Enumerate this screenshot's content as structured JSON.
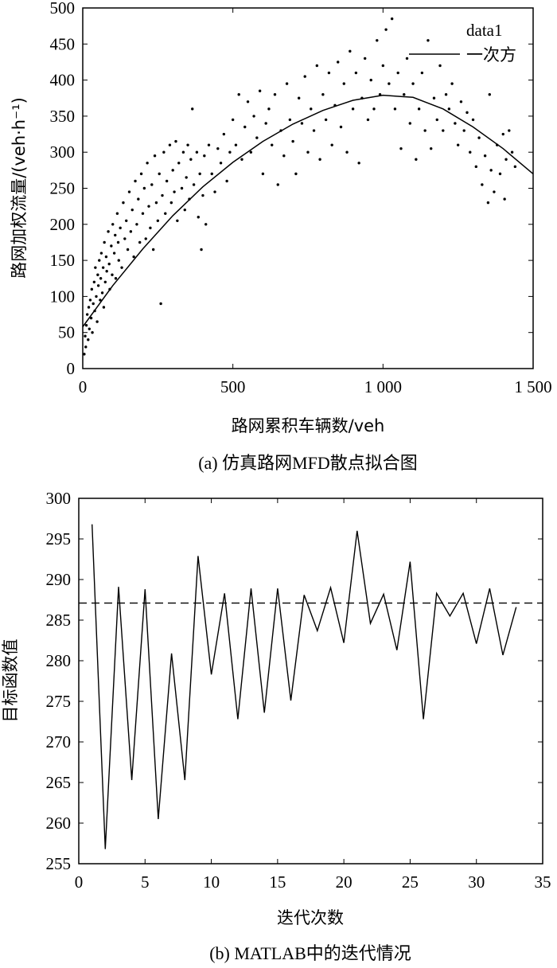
{
  "chart_data": [
    {
      "type": "scatter",
      "caption": "(a) 仿真路网MFD散点拟合图",
      "xlabel": "路网累积车辆数/veh",
      "ylabel": "路网加权流量/(veh·h⁻¹)",
      "xlim": [
        0,
        1500
      ],
      "ylim": [
        0,
        500
      ],
      "xticks": [
        0,
        500,
        1000,
        1500
      ],
      "xtick_labels": [
        "0",
        "500",
        "1 000",
        "1 500"
      ],
      "yticks": [
        0,
        50,
        100,
        150,
        200,
        250,
        300,
        350,
        400,
        450,
        500
      ],
      "ytick_labels": [
        "0",
        "50",
        "100",
        "150",
        "200",
        "250",
        "300",
        "350",
        "400",
        "450",
        "500"
      ],
      "legend": {
        "placement": "top-right",
        "entries": [
          "data1",
          "一次方"
        ]
      },
      "series": [
        {
          "name": "data1",
          "kind": "scatter",
          "points": [
            [
              5,
              20
            ],
            [
              8,
              45
            ],
            [
              10,
              30
            ],
            [
              12,
              60
            ],
            [
              15,
              75
            ],
            [
              18,
              40
            ],
            [
              20,
              85
            ],
            [
              22,
              55
            ],
            [
              25,
              95
            ],
            [
              28,
              70
            ],
            [
              30,
              110
            ],
            [
              32,
              50
            ],
            [
              35,
              90
            ],
            [
              38,
              120
            ],
            [
              40,
              80
            ],
            [
              42,
              140
            ],
            [
              45,
              100
            ],
            [
              48,
              65
            ],
            [
              50,
              130
            ],
            [
              52,
              115
            ],
            [
              55,
              150
            ],
            [
              58,
              95
            ],
            [
              60,
              125
            ],
            [
              62,
              160
            ],
            [
              65,
              105
            ],
            [
              68,
              140
            ],
            [
              70,
              85
            ],
            [
              72,
              175
            ],
            [
              75,
              120
            ],
            [
              78,
              155
            ],
            [
              80,
              135
            ],
            [
              85,
              190
            ],
            [
              88,
              145
            ],
            [
              90,
              110
            ],
            [
              95,
              170
            ],
            [
              98,
              130
            ],
            [
              100,
              200
            ],
            [
              105,
              160
            ],
            [
              108,
              185
            ],
            [
              110,
              125
            ],
            [
              115,
              215
            ],
            [
              118,
              175
            ],
            [
              120,
              150
            ],
            [
              125,
              195
            ],
            [
              130,
              140
            ],
            [
              135,
              230
            ],
            [
              140,
              180
            ],
            [
              145,
              205
            ],
            [
              150,
              165
            ],
            [
              155,
              245
            ],
            [
              160,
              190
            ],
            [
              165,
              220
            ],
            [
              170,
              155
            ],
            [
              175,
              260
            ],
            [
              180,
              200
            ],
            [
              185,
              235
            ],
            [
              190,
              175
            ],
            [
              195,
              270
            ],
            [
              200,
              215
            ],
            [
              205,
              250
            ],
            [
              210,
              180
            ],
            [
              215,
              285
            ],
            [
              220,
              225
            ],
            [
              225,
              195
            ],
            [
              230,
              255
            ],
            [
              235,
              165
            ],
            [
              240,
              295
            ],
            [
              245,
              230
            ],
            [
              250,
              205
            ],
            [
              255,
              270
            ],
            [
              260,
              90
            ],
            [
              265,
              240
            ],
            [
              270,
              300
            ],
            [
              275,
              215
            ],
            [
              280,
              260
            ],
            [
              290,
              310
            ],
            [
              295,
              230
            ],
            [
              300,
              275
            ],
            [
              305,
              245
            ],
            [
              310,
              315
            ],
            [
              315,
              205
            ],
            [
              320,
              285
            ],
            [
              330,
              250
            ],
            [
              335,
              300
            ],
            [
              340,
              220
            ],
            [
              345,
              265
            ],
            [
              350,
              310
            ],
            [
              355,
              235
            ],
            [
              360,
              290
            ],
            [
              365,
              360
            ],
            [
              370,
              255
            ],
            [
              380,
              300
            ],
            [
              385,
              210
            ],
            [
              390,
              270
            ],
            [
              395,
              165
            ],
            [
              400,
              240
            ],
            [
              405,
              295
            ],
            [
              410,
              200
            ],
            [
              420,
              310
            ],
            [
              430,
              270
            ],
            [
              440,
              245
            ],
            [
              450,
              305
            ],
            [
              460,
              285
            ],
            [
              470,
              325
            ],
            [
              480,
              260
            ],
            [
              490,
              300
            ],
            [
              500,
              345
            ],
            [
              510,
              310
            ],
            [
              520,
              380
            ],
            [
              530,
              290
            ],
            [
              540,
              335
            ],
            [
              550,
              370
            ],
            [
              560,
              300
            ],
            [
              570,
              350
            ],
            [
              580,
              320
            ],
            [
              590,
              385
            ],
            [
              600,
              270
            ],
            [
              610,
              340
            ],
            [
              620,
              360
            ],
            [
              630,
              310
            ],
            [
              640,
              380
            ],
            [
              650,
              255
            ],
            [
              660,
              330
            ],
            [
              670,
              295
            ],
            [
              680,
              395
            ],
            [
              690,
              345
            ],
            [
              700,
              315
            ],
            [
              710,
              270
            ],
            [
              720,
              375
            ],
            [
              730,
              340
            ],
            [
              740,
              405
            ],
            [
              750,
              300
            ],
            [
              760,
              360
            ],
            [
              770,
              330
            ],
            [
              780,
              420
            ],
            [
              790,
              290
            ],
            [
              800,
              380
            ],
            [
              810,
              345
            ],
            [
              820,
              410
            ],
            [
              830,
              310
            ],
            [
              840,
              365
            ],
            [
              850,
              425
            ],
            [
              860,
              335
            ],
            [
              870,
              395
            ],
            [
              880,
              300
            ],
            [
              890,
              440
            ],
            [
              900,
              360
            ],
            [
              910,
              410
            ],
            [
              920,
              285
            ],
            [
              930,
              375
            ],
            [
              940,
              430
            ],
            [
              950,
              345
            ],
            [
              960,
              400
            ],
            [
              970,
              360
            ],
            [
              980,
              455
            ],
            [
              990,
              380
            ],
            [
              1000,
              420
            ],
            [
              1010,
              470
            ],
            [
              1020,
              395
            ],
            [
              1030,
              485
            ],
            [
              1040,
              360
            ],
            [
              1050,
              410
            ],
            [
              1060,
              305
            ],
            [
              1070,
              380
            ],
            [
              1080,
              430
            ],
            [
              1090,
              340
            ],
            [
              1100,
              395
            ],
            [
              1110,
              290
            ],
            [
              1120,
              360
            ],
            [
              1130,
              410
            ],
            [
              1140,
              330
            ],
            [
              1150,
              455
            ],
            [
              1160,
              305
            ],
            [
              1170,
              375
            ],
            [
              1180,
              345
            ],
            [
              1190,
              420
            ],
            [
              1200,
              330
            ],
            [
              1210,
              380
            ],
            [
              1220,
              360
            ],
            [
              1230,
              395
            ],
            [
              1240,
              340
            ],
            [
              1250,
              310
            ],
            [
              1260,
              370
            ],
            [
              1270,
              330
            ],
            [
              1280,
              355
            ],
            [
              1290,
              300
            ],
            [
              1300,
              345
            ],
            [
              1310,
              280
            ],
            [
              1320,
              320
            ],
            [
              1330,
              255
            ],
            [
              1340,
              295
            ],
            [
              1350,
              230
            ],
            [
              1355,
              380
            ],
            [
              1360,
              275
            ],
            [
              1370,
              245
            ],
            [
              1380,
              310
            ],
            [
              1390,
              270
            ],
            [
              1400,
              325
            ],
            [
              1405,
              235
            ],
            [
              1410,
              290
            ],
            [
              1420,
              330
            ],
            [
              1430,
              300
            ],
            [
              1440,
              280
            ]
          ]
        },
        {
          "name": "一次方",
          "kind": "line",
          "x": [
            0,
            100,
            200,
            300,
            400,
            500,
            600,
            700,
            800,
            900,
            1000,
            1100,
            1200,
            1300,
            1400,
            1500
          ],
          "y": [
            58,
            115,
            166,
            212,
            252,
            286,
            315,
            339,
            358,
            372,
            379,
            376,
            360,
            335,
            305,
            270
          ]
        }
      ]
    },
    {
      "type": "line",
      "caption": "(b) MATLAB中的迭代情况",
      "xlabel": "迭代次数",
      "ylabel": "目标函数值",
      "xlim": [
        0,
        35
      ],
      "ylim": [
        255,
        300
      ],
      "xticks": [
        0,
        5,
        10,
        15,
        20,
        25,
        30,
        35
      ],
      "xtick_labels": [
        "0",
        "5",
        "10",
        "15",
        "20",
        "25",
        "30",
        "35"
      ],
      "yticks": [
        255,
        260,
        265,
        270,
        275,
        280,
        285,
        290,
        295,
        300
      ],
      "ytick_labels": [
        "255",
        "260",
        "265",
        "270",
        "275",
        "280",
        "285",
        "290",
        "295",
        "300"
      ],
      "series": [
        {
          "kind": "solid",
          "x": [
            1,
            2,
            3,
            4,
            5,
            6,
            7,
            8,
            9,
            10,
            11,
            12,
            13,
            14,
            15,
            16,
            17,
            18,
            19,
            20,
            21,
            22,
            23,
            24,
            25,
            26,
            27,
            28,
            29,
            30,
            31,
            32,
            33
          ],
          "y": [
            296.8,
            256.8,
            289.1,
            265.3,
            288.8,
            260.5,
            280.9,
            265.3,
            292.9,
            278.3,
            288.3,
            272.8,
            288.9,
            273.6,
            288.9,
            275.1,
            288.1,
            283.7,
            289.0,
            282.2,
            296.0,
            284.6,
            288.2,
            281.3,
            292.2,
            272.8,
            288.3,
            285.5,
            288.3,
            282.1,
            288.9,
            280.7,
            286.6
          ]
        },
        {
          "kind": "dashed",
          "x": [
            0,
            35
          ],
          "y": [
            287.1,
            287.1
          ]
        }
      ]
    }
  ]
}
